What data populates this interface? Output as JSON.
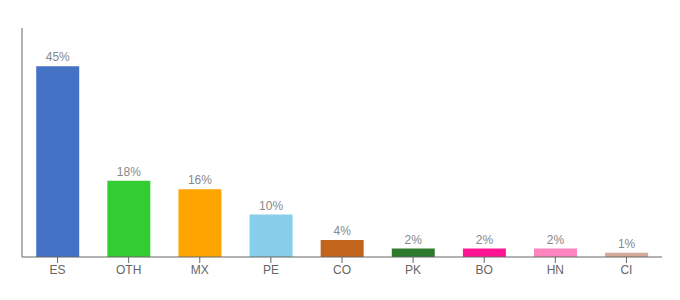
{
  "chart_data": {
    "type": "bar",
    "categories": [
      "ES",
      "OTH",
      "MX",
      "PE",
      "CO",
      "PK",
      "BO",
      "HN",
      "CI"
    ],
    "values": [
      45,
      18,
      16,
      10,
      4,
      2,
      2,
      2,
      1
    ],
    "value_labels": [
      "45%",
      "18%",
      "16%",
      "10%",
      "4%",
      "2%",
      "2%",
      "2%",
      "1%"
    ],
    "colors": [
      "#4472C4",
      "#33CC33",
      "#FFA500",
      "#87CEEB",
      "#C0651A",
      "#2D7A2D",
      "#FF1493",
      "#FF85C0",
      "#D4A99A"
    ],
    "ylim": [
      0,
      54
    ],
    "data_labels": true,
    "tick_labels": "x",
    "grid": false
  }
}
